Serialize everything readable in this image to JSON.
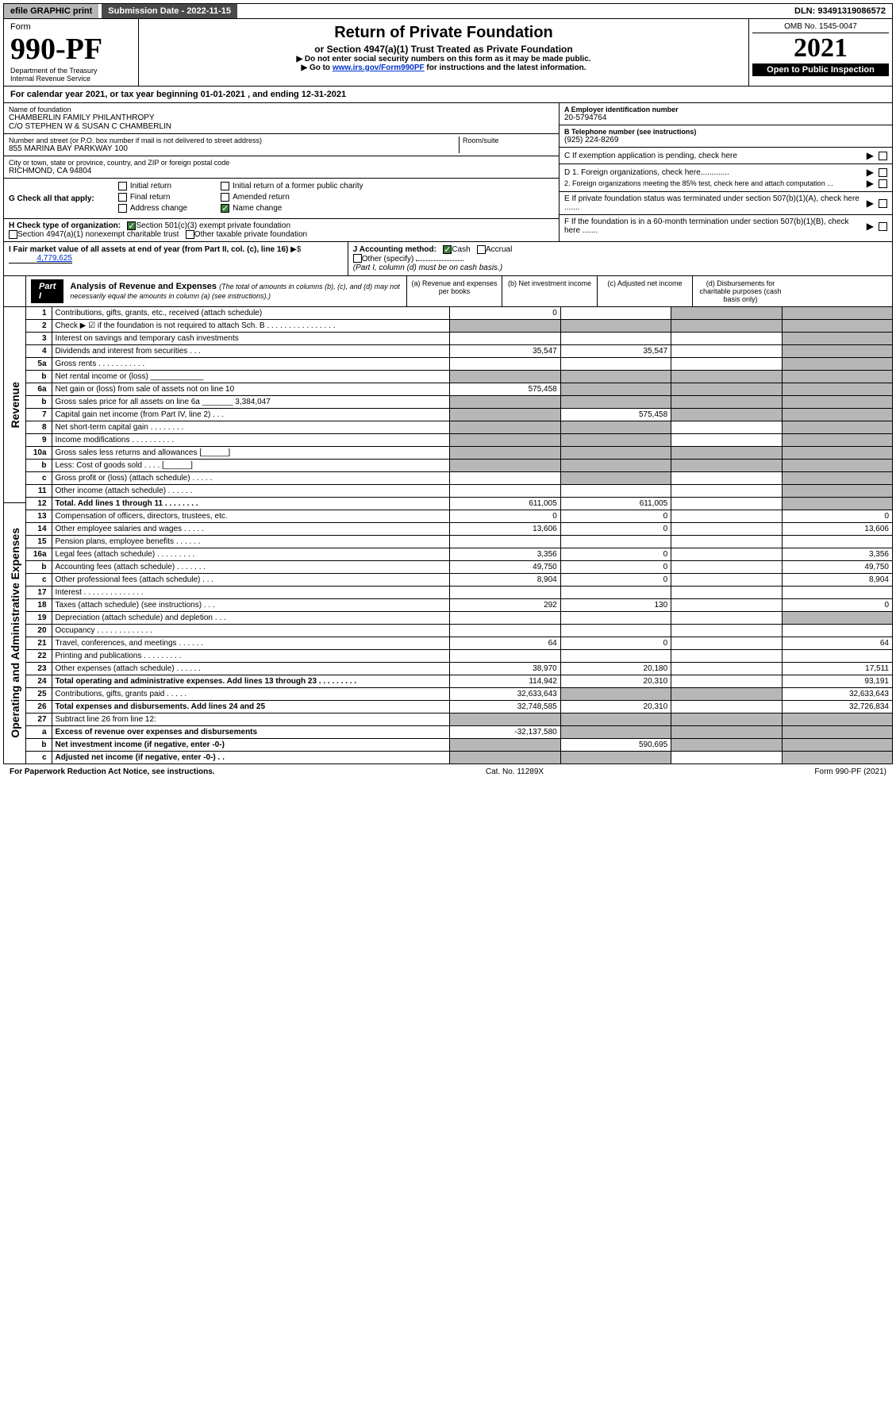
{
  "topbar": {
    "efile": "efile GRAPHIC print",
    "submission": "Submission Date - 2022-11-15",
    "dln": "DLN: 93491319086572"
  },
  "header": {
    "form_label": "Form",
    "form_no": "990-PF",
    "dept": "Department of the Treasury",
    "irs": "Internal Revenue Service",
    "title": "Return of Private Foundation",
    "subtitle": "or Section 4947(a)(1) Trust Treated as Private Foundation",
    "note1": "▶ Do not enter social security numbers on this form as it may be made public.",
    "note2_pre": "▶ Go to ",
    "note2_link": "www.irs.gov/Form990PF",
    "note2_post": " for instructions and the latest information.",
    "omb": "OMB No. 1545-0047",
    "year": "2021",
    "inspect": "Open to Public Inspection"
  },
  "calyear": "For calendar year 2021, or tax year beginning 01-01-2021                         , and ending 12-31-2021",
  "foundation": {
    "name_lbl": "Name of foundation",
    "name": "CHAMBERLIN FAMILY PHILANTHROPY",
    "co": "C/O STEPHEN W & SUSAN C CHAMBERLIN",
    "addr_lbl": "Number and street (or P.O. box number if mail is not delivered to street address)",
    "addr": "855 MARINA BAY PARKWAY 100",
    "room_lbl": "Room/suite",
    "city_lbl": "City or town, state or province, country, and ZIP or foreign postal code",
    "city": "RICHMOND, CA  94804"
  },
  "rightinfo": {
    "a_lbl": "A Employer identification number",
    "a_val": "20-5794764",
    "b_lbl": "B Telephone number (see instructions)",
    "b_val": "(925) 224-8269",
    "c_lbl": "C If exemption application is pending, check here",
    "d1": "D 1. Foreign organizations, check here.............",
    "d2": "2. Foreign organizations meeting the 85% test, check here and attach computation ...",
    "e": "E  If private foundation status was terminated under section 507(b)(1)(A), check here .......",
    "f": "F  If the foundation is in a 60-month termination under section 507(b)(1)(B), check here ......."
  },
  "g": {
    "label": "G Check all that apply:",
    "initial": "Initial return",
    "final": "Final return",
    "address": "Address change",
    "initial_former": "Initial return of a former public charity",
    "amended": "Amended return",
    "name_change": "Name change"
  },
  "h": {
    "label": "H Check type of organization:",
    "s501": "Section 501(c)(3) exempt private foundation",
    "s4947": "Section 4947(a)(1) nonexempt charitable trust",
    "other_tax": "Other taxable private foundation"
  },
  "i": {
    "label": "I Fair market value of all assets at end of year (from Part II, col. (c), line 16)",
    "arrow": "▶$",
    "value": "4,779,625"
  },
  "j": {
    "label": "J Accounting method:",
    "cash": "Cash",
    "accrual": "Accrual",
    "other": "Other (specify)",
    "note": "(Part I, column (d) must be on cash basis.)"
  },
  "part1": {
    "label": "Part I",
    "title": "Analysis of Revenue and Expenses",
    "title_note": "(The total of amounts in columns (b), (c), and (d) may not necessarily equal the amounts in column (a) (see instructions).)",
    "col_a": "(a)   Revenue and expenses per books",
    "col_b": "(b)   Net investment income",
    "col_c": "(c)   Adjusted net income",
    "col_d": "(d)   Disbursements for charitable purposes (cash basis only)"
  },
  "sides": {
    "revenue": "Revenue",
    "expenses": "Operating and Administrative Expenses"
  },
  "rows": [
    {
      "n": "1",
      "desc": "Contributions, gifts, grants, etc., received (attach schedule)",
      "a": "0",
      "b": "",
      "c": "shade",
      "d": "shade"
    },
    {
      "n": "2",
      "desc": "Check ▶ ☑ if the foundation is not required to attach Sch. B   .  .  .  .  .  .  .  .  .  .  .  .  .  .  .  .",
      "a": "shade",
      "b": "shade",
      "c": "shade",
      "d": "shade"
    },
    {
      "n": "3",
      "desc": "Interest on savings and temporary cash investments",
      "a": "",
      "b": "",
      "c": "",
      "d": "shade"
    },
    {
      "n": "4",
      "desc": "Dividends and interest from securities   .   .   .",
      "a": "35,547",
      "b": "35,547",
      "c": "",
      "d": "shade"
    },
    {
      "n": "5a",
      "desc": "Gross rents   .   .   .   .   .   .   .   .   .   .   .",
      "a": "",
      "b": "",
      "c": "",
      "d": "shade"
    },
    {
      "n": "b",
      "desc": "Net rental income or (loss)  ____________",
      "a": "shade",
      "b": "shade",
      "c": "shade",
      "d": "shade"
    },
    {
      "n": "6a",
      "desc": "Net gain or (loss) from sale of assets not on line 10",
      "a": "575,458",
      "b": "shade",
      "c": "shade",
      "d": "shade"
    },
    {
      "n": "b",
      "desc": "Gross sales price for all assets on line 6a _______ 3,384,047",
      "a": "shade",
      "b": "shade",
      "c": "shade",
      "d": "shade"
    },
    {
      "n": "7",
      "desc": "Capital gain net income (from Part IV, line 2)  .  .  .",
      "a": "shade",
      "b": "575,458",
      "c": "shade",
      "d": "shade"
    },
    {
      "n": "8",
      "desc": "Net short-term capital gain  .  .  .  .  .  .  .  .",
      "a": "shade",
      "b": "shade",
      "c": "",
      "d": "shade"
    },
    {
      "n": "9",
      "desc": "Income modifications  .  .  .  .  .  .  .  .  .  .",
      "a": "shade",
      "b": "shade",
      "c": "",
      "d": "shade"
    },
    {
      "n": "10a",
      "desc": "Gross sales less returns and allowances  [______]",
      "a": "shade",
      "b": "shade",
      "c": "shade",
      "d": "shade"
    },
    {
      "n": "b",
      "desc": "Less: Cost of goods sold   .   .   .   .   [______]",
      "a": "shade",
      "b": "shade",
      "c": "shade",
      "d": "shade"
    },
    {
      "n": "c",
      "desc": "Gross profit or (loss) (attach schedule)   .   .   .   .   .",
      "a": "",
      "b": "shade",
      "c": "",
      "d": "shade"
    },
    {
      "n": "11",
      "desc": "Other income (attach schedule)   .   .   .   .   .   .",
      "a": "",
      "b": "",
      "c": "",
      "d": "shade"
    },
    {
      "n": "12",
      "desc": "Total. Add lines 1 through 11   .   .   .   .   .   .   .   .",
      "a": "611,005",
      "b": "611,005",
      "c": "",
      "d": "shade",
      "bold": true
    },
    {
      "n": "13",
      "desc": "Compensation of officers, directors, trustees, etc.",
      "a": "0",
      "b": "0",
      "c": "",
      "d": "0"
    },
    {
      "n": "14",
      "desc": "Other employee salaries and wages   .   .   .   .   .",
      "a": "13,606",
      "b": "0",
      "c": "",
      "d": "13,606"
    },
    {
      "n": "15",
      "desc": "Pension plans, employee benefits  .  .  .  .  .  .",
      "a": "",
      "b": "",
      "c": "",
      "d": ""
    },
    {
      "n": "16a",
      "desc": "Legal fees (attach schedule)  .  .  .  .  .  .  .  .  .",
      "a": "3,356",
      "b": "0",
      "c": "",
      "d": "3,356"
    },
    {
      "n": "b",
      "desc": "Accounting fees (attach schedule)  .  .  .  .  .  .  .",
      "a": "49,750",
      "b": "0",
      "c": "",
      "d": "49,750"
    },
    {
      "n": "c",
      "desc": "Other professional fees (attach schedule)   .   .   .",
      "a": "8,904",
      "b": "0",
      "c": "",
      "d": "8,904"
    },
    {
      "n": "17",
      "desc": "Interest  .  .  .  .  .  .  .  .  .  .  .  .  .  .",
      "a": "",
      "b": "",
      "c": "",
      "d": ""
    },
    {
      "n": "18",
      "desc": "Taxes (attach schedule) (see instructions)   .   .   .",
      "a": "292",
      "b": "130",
      "c": "",
      "d": "0"
    },
    {
      "n": "19",
      "desc": "Depreciation (attach schedule) and depletion   .   .   .",
      "a": "",
      "b": "",
      "c": "",
      "d": "shade"
    },
    {
      "n": "20",
      "desc": "Occupancy  .  .  .  .  .  .  .  .  .  .  .  .  .",
      "a": "",
      "b": "",
      "c": "",
      "d": ""
    },
    {
      "n": "21",
      "desc": "Travel, conferences, and meetings  .  .  .  .  .  .",
      "a": "64",
      "b": "0",
      "c": "",
      "d": "64"
    },
    {
      "n": "22",
      "desc": "Printing and publications  .  .  .  .  .  .  .  .  .",
      "a": "",
      "b": "",
      "c": "",
      "d": ""
    },
    {
      "n": "23",
      "desc": "Other expenses (attach schedule)  .  .  .  .  .  .",
      "a": "38,970",
      "b": "20,180",
      "c": "",
      "d": "17,511"
    },
    {
      "n": "24",
      "desc": "Total operating and administrative expenses. Add lines 13 through 23   .   .   .   .   .   .   .   .   .",
      "a": "114,942",
      "b": "20,310",
      "c": "",
      "d": "93,191",
      "bold": true
    },
    {
      "n": "25",
      "desc": "Contributions, gifts, grants paid   .   .   .   .   .",
      "a": "32,633,643",
      "b": "shade",
      "c": "shade",
      "d": "32,633,643"
    },
    {
      "n": "26",
      "desc": "Total expenses and disbursements. Add lines 24 and 25",
      "a": "32,748,585",
      "b": "20,310",
      "c": "",
      "d": "32,726,834",
      "bold": true
    },
    {
      "n": "27",
      "desc": "Subtract line 26 from line 12:",
      "a": "shade",
      "b": "shade",
      "c": "shade",
      "d": "shade"
    },
    {
      "n": "a",
      "desc": "Excess of revenue over expenses and disbursements",
      "a": "-32,137,580",
      "b": "shade",
      "c": "shade",
      "d": "shade",
      "bold": true
    },
    {
      "n": "b",
      "desc": "Net investment income (if negative, enter -0-)",
      "a": "shade",
      "b": "590,695",
      "c": "shade",
      "d": "shade",
      "bold": true
    },
    {
      "n": "c",
      "desc": "Adjusted net income (if negative, enter -0-)   .   .",
      "a": "shade",
      "b": "shade",
      "c": "",
      "d": "shade",
      "bold": true
    }
  ],
  "footer": {
    "left": "For Paperwork Reduction Act Notice, see instructions.",
    "mid": "Cat. No. 11289X",
    "right": "Form 990-PF (2021)"
  }
}
